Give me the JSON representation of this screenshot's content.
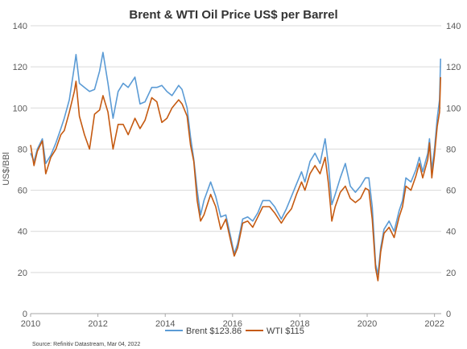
{
  "chart_data": {
    "type": "line",
    "title": "Brent & WTI Oil Price US$ per Barrel",
    "ylabel": "US$/BBl",
    "xlabel": "",
    "source": "Source: Refinitiv Datastream, Mar 04, 2022",
    "xlim": [
      2010,
      2022.2
    ],
    "ylim": [
      0,
      140
    ],
    "x_ticks": [
      "2010",
      "2012",
      "2014",
      "2016",
      "2018",
      "2020",
      "2022"
    ],
    "y_ticks": [
      "0",
      "20",
      "40",
      "60",
      "80",
      "100",
      "120",
      "140"
    ],
    "grid": "horizontal",
    "legend_position": "bottom",
    "series": [
      {
        "name": "Brent $123.86",
        "color": "#5b9bd5",
        "points": [
          [
            2010.0,
            78
          ],
          [
            2010.1,
            74
          ],
          [
            2010.2,
            80
          ],
          [
            2010.35,
            85
          ],
          [
            2010.45,
            73
          ],
          [
            2010.6,
            77
          ],
          [
            2010.75,
            83
          ],
          [
            2010.9,
            90
          ],
          [
            2011.0,
            95
          ],
          [
            2011.15,
            104
          ],
          [
            2011.3,
            120
          ],
          [
            2011.35,
            126
          ],
          [
            2011.45,
            112
          ],
          [
            2011.6,
            110
          ],
          [
            2011.75,
            108
          ],
          [
            2011.9,
            109
          ],
          [
            2012.05,
            118
          ],
          [
            2012.15,
            127
          ],
          [
            2012.3,
            112
          ],
          [
            2012.45,
            95
          ],
          [
            2012.6,
            108
          ],
          [
            2012.75,
            112
          ],
          [
            2012.9,
            110
          ],
          [
            2013.1,
            115
          ],
          [
            2013.25,
            102
          ],
          [
            2013.4,
            103
          ],
          [
            2013.6,
            110
          ],
          [
            2013.75,
            110
          ],
          [
            2013.9,
            111
          ],
          [
            2014.05,
            108
          ],
          [
            2014.2,
            106
          ],
          [
            2014.4,
            111
          ],
          [
            2014.5,
            109
          ],
          [
            2014.65,
            100
          ],
          [
            2014.75,
            86
          ],
          [
            2014.85,
            75
          ],
          [
            2014.95,
            60
          ],
          [
            2015.05,
            48
          ],
          [
            2015.15,
            55
          ],
          [
            2015.35,
            64
          ],
          [
            2015.5,
            57
          ],
          [
            2015.65,
            47
          ],
          [
            2015.8,
            48
          ],
          [
            2015.95,
            37
          ],
          [
            2016.05,
            29
          ],
          [
            2016.15,
            34
          ],
          [
            2016.3,
            46
          ],
          [
            2016.45,
            47
          ],
          [
            2016.6,
            45
          ],
          [
            2016.75,
            49
          ],
          [
            2016.9,
            55
          ],
          [
            2017.1,
            55
          ],
          [
            2017.25,
            52
          ],
          [
            2017.45,
            46
          ],
          [
            2017.6,
            51
          ],
          [
            2017.75,
            57
          ],
          [
            2017.9,
            63
          ],
          [
            2018.05,
            69
          ],
          [
            2018.15,
            64
          ],
          [
            2018.3,
            74
          ],
          [
            2018.45,
            78
          ],
          [
            2018.6,
            73
          ],
          [
            2018.75,
            85
          ],
          [
            2018.85,
            72
          ],
          [
            2018.95,
            53
          ],
          [
            2019.05,
            58
          ],
          [
            2019.2,
            66
          ],
          [
            2019.35,
            73
          ],
          [
            2019.5,
            62
          ],
          [
            2019.65,
            59
          ],
          [
            2019.8,
            62
          ],
          [
            2019.95,
            66
          ],
          [
            2020.05,
            66
          ],
          [
            2020.15,
            52
          ],
          [
            2020.25,
            24
          ],
          [
            2020.32,
            19
          ],
          [
            2020.4,
            32
          ],
          [
            2020.5,
            41
          ],
          [
            2020.65,
            45
          ],
          [
            2020.8,
            40
          ],
          [
            2020.95,
            50
          ],
          [
            2021.05,
            55
          ],
          [
            2021.15,
            66
          ],
          [
            2021.3,
            64
          ],
          [
            2021.45,
            70
          ],
          [
            2021.55,
            76
          ],
          [
            2021.65,
            69
          ],
          [
            2021.8,
            78
          ],
          [
            2021.85,
            85
          ],
          [
            2021.92,
            70
          ],
          [
            2022.0,
            80
          ],
          [
            2022.08,
            95
          ],
          [
            2022.15,
            104
          ],
          [
            2022.18,
            124
          ]
        ]
      },
      {
        "name": "WTI $115",
        "color": "#c55a11",
        "points": [
          [
            2010.0,
            82
          ],
          [
            2010.1,
            72
          ],
          [
            2010.2,
            79
          ],
          [
            2010.35,
            84
          ],
          [
            2010.45,
            68
          ],
          [
            2010.6,
            76
          ],
          [
            2010.75,
            80
          ],
          [
            2010.9,
            87
          ],
          [
            2011.0,
            89
          ],
          [
            2011.15,
            98
          ],
          [
            2011.3,
            108
          ],
          [
            2011.35,
            113
          ],
          [
            2011.45,
            96
          ],
          [
            2011.6,
            87
          ],
          [
            2011.75,
            80
          ],
          [
            2011.9,
            97
          ],
          [
            2012.05,
            99
          ],
          [
            2012.15,
            106
          ],
          [
            2012.3,
            98
          ],
          [
            2012.45,
            80
          ],
          [
            2012.6,
            92
          ],
          [
            2012.75,
            92
          ],
          [
            2012.9,
            87
          ],
          [
            2013.1,
            95
          ],
          [
            2013.25,
            90
          ],
          [
            2013.4,
            94
          ],
          [
            2013.6,
            105
          ],
          [
            2013.75,
            103
          ],
          [
            2013.9,
            93
          ],
          [
            2014.05,
            95
          ],
          [
            2014.2,
            100
          ],
          [
            2014.4,
            104
          ],
          [
            2014.5,
            102
          ],
          [
            2014.65,
            96
          ],
          [
            2014.75,
            82
          ],
          [
            2014.85,
            74
          ],
          [
            2014.95,
            55
          ],
          [
            2015.05,
            45
          ],
          [
            2015.15,
            48
          ],
          [
            2015.35,
            58
          ],
          [
            2015.5,
            52
          ],
          [
            2015.65,
            41
          ],
          [
            2015.8,
            46
          ],
          [
            2015.95,
            35
          ],
          [
            2016.05,
            28
          ],
          [
            2016.15,
            32
          ],
          [
            2016.3,
            44
          ],
          [
            2016.45,
            45
          ],
          [
            2016.6,
            42
          ],
          [
            2016.75,
            47
          ],
          [
            2016.9,
            52
          ],
          [
            2017.1,
            52
          ],
          [
            2017.25,
            49
          ],
          [
            2017.45,
            44
          ],
          [
            2017.6,
            48
          ],
          [
            2017.75,
            51
          ],
          [
            2017.9,
            58
          ],
          [
            2018.05,
            64
          ],
          [
            2018.15,
            60
          ],
          [
            2018.3,
            68
          ],
          [
            2018.45,
            72
          ],
          [
            2018.6,
            68
          ],
          [
            2018.75,
            76
          ],
          [
            2018.85,
            63
          ],
          [
            2018.95,
            45
          ],
          [
            2019.05,
            52
          ],
          [
            2019.2,
            59
          ],
          [
            2019.35,
            62
          ],
          [
            2019.5,
            56
          ],
          [
            2019.65,
            54
          ],
          [
            2019.8,
            56
          ],
          [
            2019.95,
            61
          ],
          [
            2020.05,
            60
          ],
          [
            2020.15,
            46
          ],
          [
            2020.25,
            22
          ],
          [
            2020.32,
            16
          ],
          [
            2020.4,
            30
          ],
          [
            2020.5,
            39
          ],
          [
            2020.65,
            42
          ],
          [
            2020.8,
            37
          ],
          [
            2020.95,
            47
          ],
          [
            2021.05,
            52
          ],
          [
            2021.15,
            62
          ],
          [
            2021.3,
            60
          ],
          [
            2021.45,
            67
          ],
          [
            2021.55,
            73
          ],
          [
            2021.65,
            66
          ],
          [
            2021.8,
            75
          ],
          [
            2021.85,
            83
          ],
          [
            2021.92,
            66
          ],
          [
            2022.0,
            77
          ],
          [
            2022.08,
            91
          ],
          [
            2022.15,
            98
          ],
          [
            2022.18,
            115
          ]
        ]
      }
    ]
  }
}
